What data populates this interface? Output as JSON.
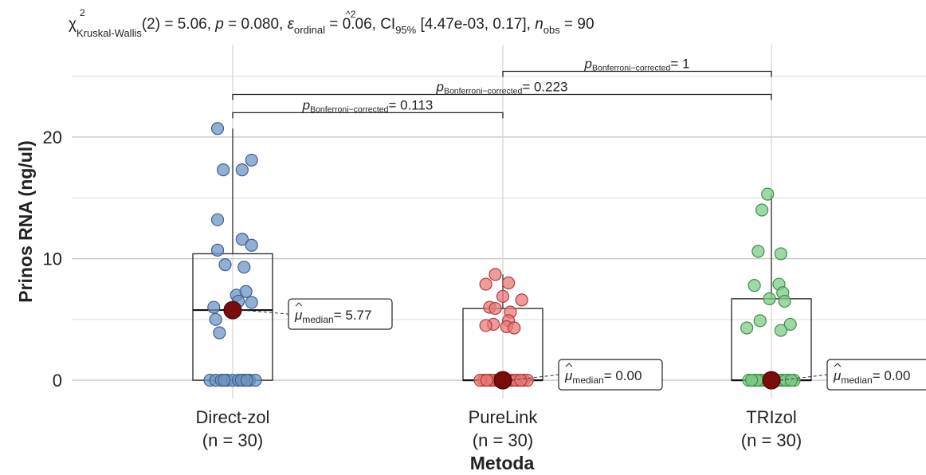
{
  "chart_data": {
    "type": "box-violin-scatter",
    "subtitle_parts": {
      "chi": "χ",
      "chi_sup": "2",
      "chi_sub": "Kruskal-Wallis",
      "stat": "(2) = 5.06, ",
      "p": "p",
      "p_val": " = 0.080, ",
      "eps": "ε",
      "eps_sup": "^2",
      "eps_sub": "ordinal",
      "eps_val": " = 0.06, CI",
      "ci_sub": "95%",
      "ci_val": " [4.47e-03, 0.17], ",
      "n": "n",
      "n_sub": "obs",
      "n_val": " = 90"
    },
    "xlabel": "Metoda",
    "ylabel": "Prinos RNA (ng/ul)",
    "ylim": [
      -1.5,
      25.5
    ],
    "yticks": [
      0,
      10,
      20
    ],
    "grid": true,
    "categories": [
      {
        "name": "Direct-zol",
        "n_label": "(n = 30)",
        "color": "#6f94c4",
        "edge": "#3e5f8f",
        "box": {
          "q1": 0,
          "median": 5.77,
          "q3": 10.4,
          "whisker_low": 0,
          "whisker_high": 20.7
        },
        "mean_label": {
          "mu": "μ",
          "sub": "median",
          "val": "= 5.77"
        },
        "points": [
          [
            -0.08,
            20.7
          ],
          [
            0.1,
            18.1
          ],
          [
            -0.05,
            17.3
          ],
          [
            0.05,
            17.3
          ],
          [
            -0.08,
            13.2
          ],
          [
            0.05,
            11.6
          ],
          [
            0.1,
            11.1
          ],
          [
            -0.08,
            10.7
          ],
          [
            0.06,
            9.3
          ],
          [
            -0.04,
            9.5
          ],
          [
            0.02,
            7.0
          ],
          [
            0.07,
            7.3
          ],
          [
            -0.1,
            6.0
          ],
          [
            0.1,
            6.4
          ],
          [
            0.03,
            6.5
          ],
          [
            -0.09,
            5.0
          ],
          [
            -0.07,
            3.9
          ],
          [
            0.0,
            5.6
          ],
          [
            -0.12,
            0
          ],
          [
            -0.09,
            0
          ],
          [
            -0.06,
            0
          ],
          [
            -0.03,
            0
          ],
          [
            0.0,
            0
          ],
          [
            0.03,
            0
          ],
          [
            0.06,
            0
          ],
          [
            0.09,
            0
          ],
          [
            0.12,
            0
          ],
          [
            -0.045,
            0
          ],
          [
            0.045,
            0
          ],
          [
            0.075,
            0
          ]
        ]
      },
      {
        "name": "PureLink",
        "n_label": "(n = 30)",
        "color": "#e87a7a",
        "edge": "#b03a3a",
        "box": {
          "q1": 0,
          "median": 0,
          "q3": 5.9,
          "whisker_low": 0,
          "whisker_high": 8.7
        },
        "mean_label": {
          "mu": "μ",
          "sub": "median",
          "val": "= 0.00"
        },
        "points": [
          [
            -0.04,
            8.7
          ],
          [
            0.03,
            8.0
          ],
          [
            -0.09,
            7.9
          ],
          [
            0.1,
            6.6
          ],
          [
            0.0,
            6.9
          ],
          [
            -0.07,
            6.0
          ],
          [
            -0.04,
            5.9
          ],
          [
            0.04,
            5.6
          ],
          [
            -0.05,
            4.6
          ],
          [
            0.03,
            4.9
          ],
          [
            -0.09,
            4.5
          ],
          [
            0.02,
            4.4
          ],
          [
            0.06,
            4.3
          ],
          [
            -0.1,
            0
          ],
          [
            -0.07,
            0
          ],
          [
            -0.04,
            0
          ],
          [
            -0.01,
            0
          ],
          [
            0.02,
            0
          ],
          [
            0.05,
            0
          ],
          [
            0.08,
            0
          ],
          [
            0.11,
            0
          ],
          [
            -0.12,
            0
          ],
          [
            0.13,
            0
          ],
          [
            -0.055,
            0
          ],
          [
            0.035,
            0
          ],
          [
            0.065,
            0
          ],
          [
            -0.025,
            0
          ],
          [
            0.095,
            0
          ],
          [
            -0.085,
            0
          ],
          [
            0.0,
            0
          ]
        ]
      },
      {
        "name": "TRIzol",
        "n_label": "(n = 30)",
        "color": "#7fc98a",
        "edge": "#3f8f4a",
        "box": {
          "q1": 0,
          "median": 0,
          "q3": 6.7,
          "whisker_low": 0,
          "whisker_high": 15.3
        },
        "mean_label": {
          "mu": "μ",
          "sub": "median",
          "val": "= 0.00"
        },
        "points": [
          [
            -0.02,
            15.3
          ],
          [
            -0.05,
            14.0
          ],
          [
            -0.07,
            10.6
          ],
          [
            0.05,
            10.4
          ],
          [
            -0.09,
            7.8
          ],
          [
            0.04,
            7.9
          ],
          [
            0.06,
            7.2
          ],
          [
            -0.01,
            6.7
          ],
          [
            0.07,
            6.5
          ],
          [
            -0.06,
            4.9
          ],
          [
            0.1,
            4.6
          ],
          [
            -0.13,
            4.3
          ],
          [
            0.05,
            4.1
          ],
          [
            -0.12,
            0
          ],
          [
            -0.09,
            0
          ],
          [
            -0.06,
            0
          ],
          [
            -0.03,
            0
          ],
          [
            0.0,
            0
          ],
          [
            0.03,
            0
          ],
          [
            0.06,
            0
          ],
          [
            0.09,
            0
          ],
          [
            0.12,
            0
          ],
          [
            -0.045,
            0
          ],
          [
            0.045,
            0
          ],
          [
            0.075,
            0
          ],
          [
            -0.075,
            0
          ],
          [
            0.015,
            0
          ],
          [
            -0.015,
            0
          ],
          [
            0.105,
            0
          ],
          [
            -0.105,
            0
          ]
        ]
      }
    ],
    "comparisons": [
      {
        "from": 1,
        "to": 2,
        "y": 25.4,
        "p": "p",
        "sub": "Bonferroni−corrected",
        "val": "= 1"
      },
      {
        "from": 0,
        "to": 2,
        "y": 23.5,
        "p": "p",
        "sub": "Bonferroni−corrected",
        "val": "= 0.223"
      },
      {
        "from": 0,
        "to": 1,
        "y": 22.0,
        "p": "p",
        "sub": "Bonferroni−corrected",
        "val": "= 0.113"
      }
    ],
    "median_marker_color": "#7a0c0c"
  }
}
